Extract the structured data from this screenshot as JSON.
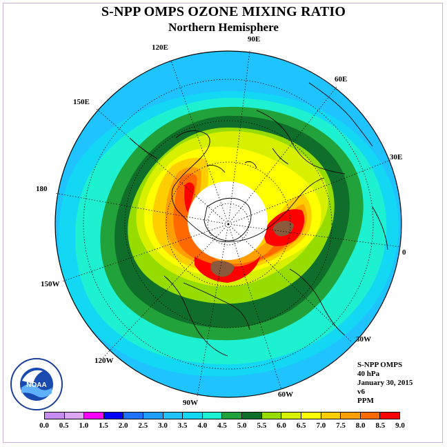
{
  "header": {
    "title": "S-NPP OMPS OZONE MIXING RATIO",
    "subtitle": "Northern Hemisphere"
  },
  "longitude_labels": [
    "90E",
    "60E",
    "30E",
    "0",
    "30W",
    "60W",
    "90W",
    "120W",
    "150W",
    "180",
    "150E",
    "120E"
  ],
  "info": {
    "instrument": "S-NPP OMPS",
    "level": "40 hPa",
    "date": "January 30, 2015",
    "version": "v6",
    "units": "PPM"
  },
  "logo": {
    "text": "NOAA",
    "ring_text": "NATIONAL OCEANIC AND ATMOSPHERIC ADMINISTRATION U.S. DEPARTMENT OF COMMERCE"
  },
  "colorbar": {
    "ticks": [
      "0.0",
      "0.5",
      "1.0",
      "1.5",
      "2.0",
      "2.5",
      "3.0",
      "3.5",
      "4.0",
      "4.5",
      "5.0",
      "5.5",
      "6.0",
      "6.5",
      "7.0",
      "7.5",
      "8.0",
      "8.5",
      "9.0"
    ],
    "colors": [
      "#c68cf0",
      "#dda6f2",
      "#ff00ff",
      "#0000ff",
      "#1e72ff",
      "#1e9fff",
      "#1ec3ff",
      "#12d8f4",
      "#1ef0d2",
      "#22a23a",
      "#0e6e2a",
      "#96dc00",
      "#d6f000",
      "#ffff00",
      "#ffce00",
      "#ffa000",
      "#ff6a00",
      "#ff0000",
      "#8b5a3c"
    ]
  },
  "map_legend": {
    "bands_ppm": [
      3.0,
      3.5,
      4.0,
      4.5,
      5.0,
      5.5,
      6.0,
      6.5,
      7.0,
      7.5,
      8.0,
      8.5
    ],
    "no_data_region": "polar night",
    "colors": {
      "ocean_bg": "#12d8f4",
      "outer": "#1ec3ff",
      "no_data": "#ffffff",
      "coast": "#000000",
      "grid": "#000000"
    }
  }
}
